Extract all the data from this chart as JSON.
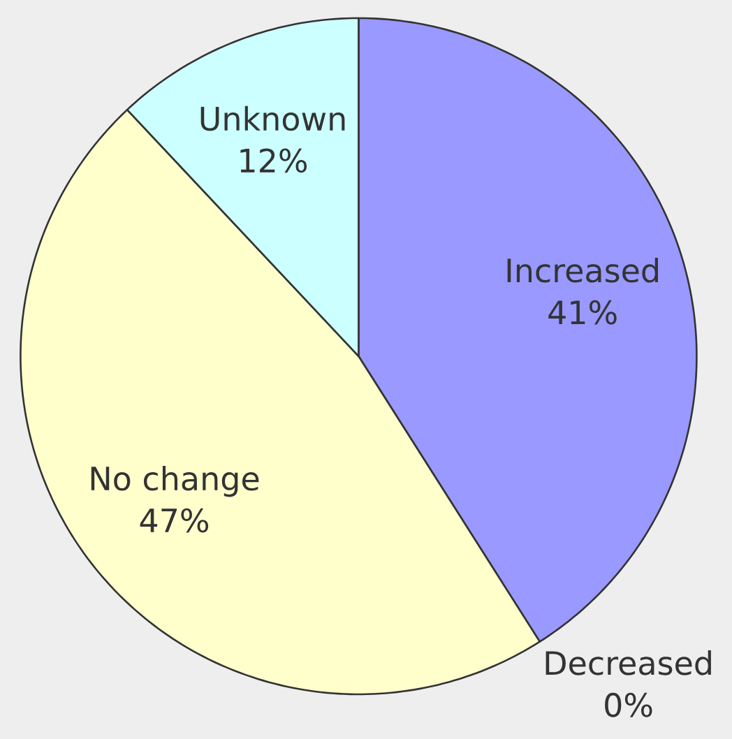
{
  "chart_data": {
    "type": "pie",
    "categories": [
      "Increased",
      "Decreased",
      "No change",
      "Unknown"
    ],
    "values": [
      41,
      0,
      47,
      12
    ],
    "colors": [
      "#9999ff",
      "#993366",
      "#ffffcc",
      "#ccffff"
    ],
    "value_labels": [
      "41%",
      "0%",
      "47%",
      "12%"
    ]
  }
}
